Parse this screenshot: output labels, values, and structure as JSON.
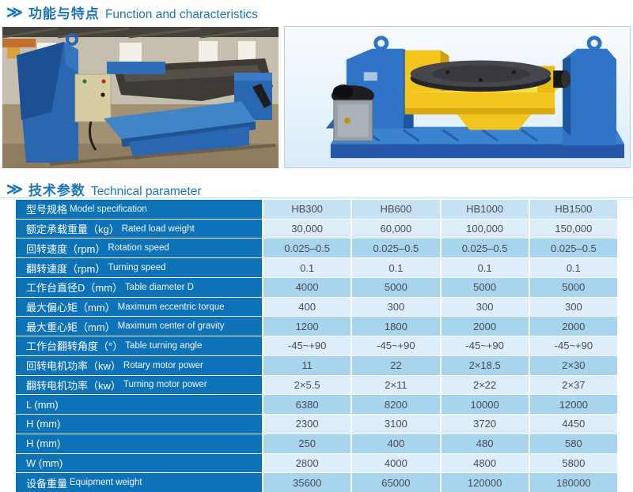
{
  "page": {
    "accent_color": "#1b75bc"
  },
  "headers": {
    "chevron": "≫",
    "function_zh": "功能与特点",
    "function_en": "Function and characteristics",
    "technical_zh": "技术参数",
    "technical_en": "Technical parameter"
  },
  "images": {
    "left_icon": "factory-installation-photo",
    "right_icon": "blue-yellow-positioner-product-photo"
  },
  "table": {
    "colors": {
      "label_bg": "#0e72b9",
      "row_head": "#c6e2f4",
      "row_light": "#ddeefa",
      "row_med": "#a9d4ee",
      "value_text": "#4a4a52"
    },
    "columns": [
      "HB300",
      "HB600",
      "HB1000",
      "HB1500"
    ],
    "rows": [
      {
        "zh": "型号规格",
        "en": "Model specification",
        "values": [
          "HB300",
          "HB600",
          "HB1000",
          "HB1500"
        ]
      },
      {
        "zh": "额定承载重量（kg）",
        "en": "Rated load weight",
        "values": [
          "30,000",
          "60,000",
          "100,000",
          "150,000"
        ]
      },
      {
        "zh": "回转速度（rpm）",
        "en": "Rotation speed",
        "values": [
          "0.025–0.5",
          "0.025–0.5",
          "0.025–0.5",
          "0.025–0.5"
        ]
      },
      {
        "zh": "翻转速度（rpm）",
        "en": "Turning speed",
        "values": [
          "0.1",
          "0.1",
          "0.1",
          "0.1"
        ]
      },
      {
        "zh": "工作台直径D（mm）",
        "en": "Table diameter D",
        "values": [
          "4000",
          "5000",
          "5000",
          "5000"
        ]
      },
      {
        "zh": "最大偏心矩（mm）",
        "en": "Maximum eccentric torque",
        "values": [
          "400",
          "300",
          "300",
          "300"
        ]
      },
      {
        "zh": "最大重心矩（mm）",
        "en": "Maximum center of gravity",
        "values": [
          "1200",
          "1800",
          "2000",
          "2000"
        ]
      },
      {
        "zh": "工作台翻转角度（°）",
        "en": "Table turning angle",
        "values": [
          "-45~+90",
          "-45~+90",
          "-45~+90",
          "-45~+90"
        ]
      },
      {
        "zh": "回转电机功率（kw）",
        "en": "Rotary motor power",
        "values": [
          "11",
          "22",
          "2×18.5",
          "2×30"
        ]
      },
      {
        "zh": "翻转电机功率（kw）",
        "en": "Turning motor power",
        "values": [
          "2×5.5",
          "2×11",
          "2×22",
          "2×37"
        ]
      },
      {
        "zh": "L (mm)",
        "en": "",
        "values": [
          "6380",
          "8200",
          "10000",
          "12000"
        ]
      },
      {
        "zh": "H (mm)",
        "en": "",
        "values": [
          "2300",
          "3100",
          "3720",
          "4450"
        ]
      },
      {
        "zh": "H (mm)",
        "en": "",
        "values": [
          "250",
          "400",
          "480",
          "580"
        ]
      },
      {
        "zh": "W (mm)",
        "en": "",
        "values": [
          "2800",
          "4000",
          "4800",
          "5800"
        ]
      },
      {
        "zh": "设备重量",
        "en": "Equipment weight",
        "values": [
          "35600",
          "65000",
          "120000",
          "180000"
        ]
      }
    ]
  }
}
